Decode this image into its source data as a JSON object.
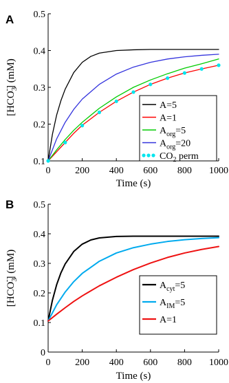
{
  "chart_data": [
    {
      "panel": "A",
      "type": "line",
      "xlabel": "Time (s)",
      "ylabel": "[HCO",
      "ylabel_sub": "3",
      "ylabel_sup": "-",
      "ylabel_tail": "] (mM)",
      "xlim": [
        0,
        1000
      ],
      "ylim": [
        0.1,
        0.5
      ],
      "xticks": [
        "0",
        "200",
        "400",
        "600",
        "800",
        "1000"
      ],
      "yticks": [
        "0.1",
        "0.2",
        "0.3",
        "0.4",
        "0.5"
      ],
      "legend_position": "bottom-right",
      "series": [
        {
          "label_main": "A=5",
          "label_sub": "",
          "label_tail": "",
          "color": "#000000",
          "style": "solid",
          "x": [
            0,
            25,
            50,
            75,
            100,
            150,
            200,
            250,
            300,
            400,
            500,
            600,
            700,
            800,
            900,
            1000
          ],
          "y": [
            0.1,
            0.172,
            0.225,
            0.264,
            0.295,
            0.34,
            0.368,
            0.384,
            0.393,
            0.4,
            0.402,
            0.403,
            0.403,
            0.403,
            0.403,
            0.403
          ]
        },
        {
          "label_main": "A=1",
          "label_sub": "",
          "label_tail": "",
          "color": "#ff0000",
          "style": "solid",
          "x": [
            0,
            50,
            100,
            150,
            200,
            300,
            400,
            500,
            600,
            700,
            800,
            900,
            1000
          ],
          "y": [
            0.1,
            0.125,
            0.15,
            0.175,
            0.197,
            0.232,
            0.262,
            0.287,
            0.308,
            0.325,
            0.339,
            0.35,
            0.36
          ]
        },
        {
          "label_main": "A",
          "label_sub": "org",
          "label_tail": "=5",
          "color": "#00cc00",
          "style": "solid",
          "x": [
            0,
            50,
            100,
            150,
            200,
            300,
            400,
            500,
            600,
            700,
            800,
            900,
            1000
          ],
          "y": [
            0.1,
            0.13,
            0.158,
            0.183,
            0.205,
            0.243,
            0.274,
            0.3,
            0.32,
            0.337,
            0.352,
            0.364,
            0.377
          ]
        },
        {
          "label_main": "A",
          "label_sub": "org",
          "label_tail": "=20",
          "color": "#3333dd",
          "style": "solid",
          "x": [
            0,
            50,
            100,
            150,
            200,
            300,
            400,
            500,
            600,
            700,
            800,
            900,
            1000
          ],
          "y": [
            0.1,
            0.16,
            0.205,
            0.24,
            0.268,
            0.308,
            0.336,
            0.355,
            0.368,
            0.377,
            0.383,
            0.387,
            0.39
          ]
        },
        {
          "label_main": "CO",
          "label_sub": "2",
          "label_tail": " perm",
          "color": "#00e5ee",
          "style": "dotted",
          "x": [
            0,
            100,
            200,
            300,
            400,
            500,
            600,
            700,
            800,
            900,
            1000
          ],
          "y": [
            0.1,
            0.15,
            0.196,
            0.232,
            0.262,
            0.287,
            0.308,
            0.325,
            0.339,
            0.35,
            0.36
          ]
        }
      ]
    },
    {
      "panel": "B",
      "type": "line",
      "xlabel": "Time (s)",
      "ylabel": "[HCO",
      "ylabel_sub": "3",
      "ylabel_sup": "-",
      "ylabel_tail": "] (mM)",
      "xlim": [
        0,
        1000
      ],
      "ylim": [
        0,
        0.5
      ],
      "xticks": [
        "0",
        "200",
        "400",
        "600",
        "800",
        "1000"
      ],
      "yticks": [
        "0",
        "0.1",
        "0.2",
        "0.3",
        "0.4",
        "0.5"
      ],
      "legend_position": "bottom-right",
      "series": [
        {
          "label_main": "A",
          "label_sub": "cyt",
          "label_tail": "=5",
          "color": "#000000",
          "style": "solid",
          "x": [
            0,
            25,
            50,
            75,
            100,
            150,
            200,
            250,
            300,
            400,
            500,
            600,
            700,
            800,
            900,
            1000
          ],
          "y": [
            0.105,
            0.175,
            0.228,
            0.268,
            0.298,
            0.34,
            0.365,
            0.379,
            0.386,
            0.391,
            0.392,
            0.392,
            0.392,
            0.392,
            0.392,
            0.392
          ]
        },
        {
          "label_main": "A",
          "label_sub": "IM",
          "label_tail": "=5",
          "color": "#00aaee",
          "style": "solid",
          "x": [
            0,
            50,
            100,
            150,
            200,
            300,
            400,
            500,
            600,
            700,
            800,
            900,
            1000
          ],
          "y": [
            0.105,
            0.16,
            0.203,
            0.238,
            0.266,
            0.307,
            0.335,
            0.353,
            0.365,
            0.374,
            0.38,
            0.384,
            0.387
          ]
        },
        {
          "label_main": "A=1",
          "label_sub": "",
          "label_tail": "",
          "color": "#ee1111",
          "style": "solid",
          "x": [
            0,
            50,
            100,
            150,
            200,
            300,
            400,
            500,
            600,
            700,
            800,
            900,
            1000
          ],
          "y": [
            0.105,
            0.128,
            0.15,
            0.171,
            0.19,
            0.224,
            0.253,
            0.279,
            0.301,
            0.32,
            0.335,
            0.347,
            0.357
          ]
        }
      ]
    }
  ]
}
